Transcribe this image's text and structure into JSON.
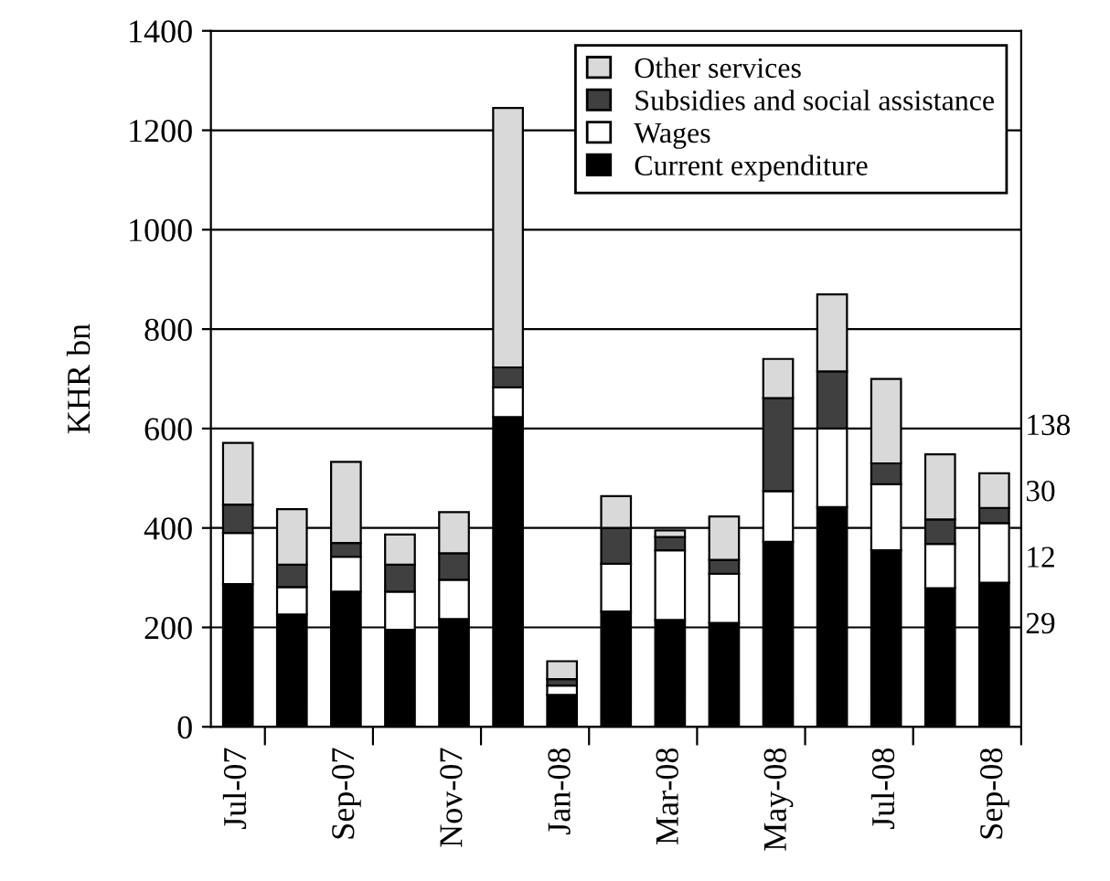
{
  "chart_data": {
    "type": "bar",
    "stacked": true,
    "ylabel": "KHR bn",
    "categories": [
      "Jul-07",
      null,
      "Sep-07",
      null,
      "Nov-07",
      null,
      "Jan-08",
      null,
      "Mar-08",
      null,
      "May-08",
      null,
      "Jul-08",
      null,
      "Sep-08"
    ],
    "series": [
      {
        "name": "Current expenditure",
        "color": "#000000",
        "values": [
          287,
          226,
          272,
          195,
          217,
          623,
          64,
          232,
          215,
          209,
          372,
          442,
          355,
          279,
          290
        ]
      },
      {
        "name": "Wages",
        "color": "#ffffff",
        "values": [
          103,
          55,
          70,
          77,
          79,
          60,
          19,
          96,
          140,
          99,
          102,
          158,
          133,
          89,
          120
        ]
      },
      {
        "name": "Subsidies and social assistance",
        "color": "#404040",
        "values": [
          57,
          45,
          28,
          54,
          53,
          40,
          13,
          72,
          27,
          28,
          187,
          115,
          42,
          49,
          30
        ]
      },
      {
        "name": "Other services",
        "color": "#d9d9d9",
        "values": [
          124,
          112,
          163,
          61,
          83,
          522,
          36,
          64,
          13,
          87,
          79,
          155,
          170,
          131,
          70
        ]
      }
    ],
    "annotations": [
      "138",
      "30",
      "12",
      "29"
    ],
    "ylim": [
      0,
      1400
    ],
    "yticks": [
      0,
      200,
      400,
      600,
      800,
      1000,
      1200,
      1400
    ],
    "grid": "y",
    "legend": "top right"
  }
}
